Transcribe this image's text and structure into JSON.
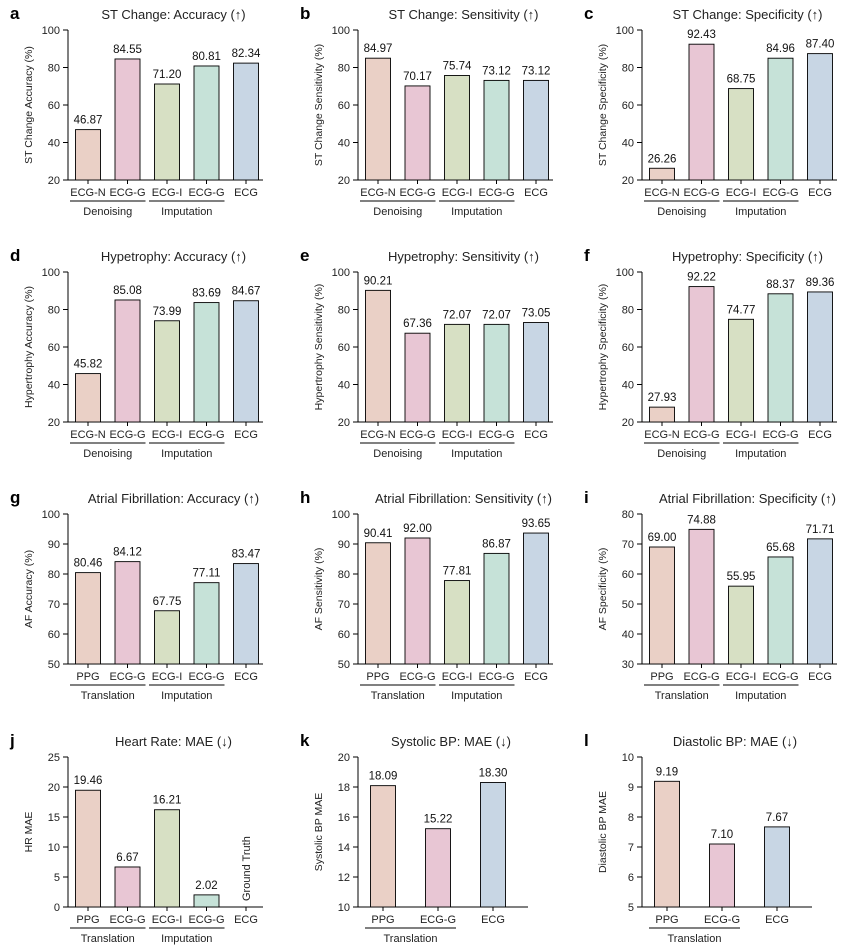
{
  "colors": {
    "PPG": "#ead0c6",
    "ECG-N": "#ead0c6",
    "ECG-G": "#e8c6d4",
    "ECG-I": "#d7e0c4",
    "ECG-G2": "#c6e2d8",
    "ECG": "#c8d6e4"
  },
  "chart_data": [
    {
      "letter": "a",
      "type": "bar",
      "title": "ST Change: Accuracy (↑)",
      "ylabel": "ST Change Accuracy (%)",
      "ylim": [
        20,
        100
      ],
      "yticks": [
        20,
        40,
        60,
        80,
        100
      ],
      "categories": [
        "ECG-N",
        "ECG-G",
        "ECG-I",
        "ECG-G",
        "ECG"
      ],
      "color_keys": [
        "ECG-N",
        "ECG-G",
        "ECG-I",
        "ECG-G2",
        "ECG"
      ],
      "values": [
        46.87,
        84.55,
        71.2,
        80.81,
        82.34
      ],
      "value_labels": [
        "46.87",
        "84.55",
        "71.20",
        "80.81",
        "82.34"
      ],
      "groups": [
        {
          "label": "Denoising",
          "from": 0,
          "to": 1
        },
        {
          "label": "Imputation",
          "from": 2,
          "to": 3
        }
      ]
    },
    {
      "letter": "b",
      "type": "bar",
      "title": "ST Change: Sensitivity (↑)",
      "ylabel": "ST Change Sensitivity (%)",
      "ylim": [
        20,
        100
      ],
      "yticks": [
        20,
        40,
        60,
        80,
        100
      ],
      "categories": [
        "ECG-N",
        "ECG-G",
        "ECG-I",
        "ECG-G",
        "ECG"
      ],
      "color_keys": [
        "ECG-N",
        "ECG-G",
        "ECG-I",
        "ECG-G2",
        "ECG"
      ],
      "values": [
        84.97,
        70.17,
        75.74,
        73.12,
        73.12
      ],
      "value_labels": [
        "84.97",
        "70.17",
        "75.74",
        "73.12",
        "73.12"
      ],
      "groups": [
        {
          "label": "Denoising",
          "from": 0,
          "to": 1
        },
        {
          "label": "Imputation",
          "from": 2,
          "to": 3
        }
      ]
    },
    {
      "letter": "c",
      "type": "bar",
      "title": "ST Change: Specificity (↑)",
      "ylabel": "ST Change Specificity (%)",
      "ylim": [
        20,
        100
      ],
      "yticks": [
        20,
        40,
        60,
        80,
        100
      ],
      "categories": [
        "ECG-N",
        "ECG-G",
        "ECG-I",
        "ECG-G",
        "ECG"
      ],
      "color_keys": [
        "ECG-N",
        "ECG-G",
        "ECG-I",
        "ECG-G2",
        "ECG"
      ],
      "values": [
        26.26,
        92.43,
        68.75,
        84.96,
        87.4
      ],
      "value_labels": [
        "26.26",
        "92.43",
        "68.75",
        "84.96",
        "87.40"
      ],
      "groups": [
        {
          "label": "Denoising",
          "from": 0,
          "to": 1
        },
        {
          "label": "Imputation",
          "from": 2,
          "to": 3
        }
      ]
    },
    {
      "letter": "d",
      "type": "bar",
      "title": "Hypetrophy: Accuracy (↑)",
      "ylabel": "Hypertrophy Accuracy (%)",
      "ylim": [
        20,
        100
      ],
      "yticks": [
        20,
        40,
        60,
        80,
        100
      ],
      "categories": [
        "ECG-N",
        "ECG-G",
        "ECG-I",
        "ECG-G",
        "ECG"
      ],
      "color_keys": [
        "ECG-N",
        "ECG-G",
        "ECG-I",
        "ECG-G2",
        "ECG"
      ],
      "values": [
        45.82,
        85.08,
        73.99,
        83.69,
        84.67
      ],
      "value_labels": [
        "45.82",
        "85.08",
        "73.99",
        "83.69",
        "84.67"
      ],
      "groups": [
        {
          "label": "Denoising",
          "from": 0,
          "to": 1
        },
        {
          "label": "Imputation",
          "from": 2,
          "to": 3
        }
      ]
    },
    {
      "letter": "e",
      "type": "bar",
      "title": "Hypetrophy: Sensitivity (↑)",
      "ylabel": "Hypertrophy Sensitivity (%)",
      "ylim": [
        20,
        100
      ],
      "yticks": [
        20,
        40,
        60,
        80,
        100
      ],
      "categories": [
        "ECG-N",
        "ECG-G",
        "ECG-I",
        "ECG-G",
        "ECG"
      ],
      "color_keys": [
        "ECG-N",
        "ECG-G",
        "ECG-I",
        "ECG-G2",
        "ECG"
      ],
      "values": [
        90.21,
        67.36,
        72.07,
        72.07,
        73.05
      ],
      "value_labels": [
        "90.21",
        "67.36",
        "72.07",
        "72.07",
        "73.05"
      ],
      "groups": [
        {
          "label": "Denoising",
          "from": 0,
          "to": 1
        },
        {
          "label": "Imputation",
          "from": 2,
          "to": 3
        }
      ]
    },
    {
      "letter": "f",
      "type": "bar",
      "title": "Hypetrophy: Specificity (↑)",
      "ylabel": "Hypertrophy Specificity (%)",
      "ylim": [
        20,
        100
      ],
      "yticks": [
        20,
        40,
        60,
        80,
        100
      ],
      "categories": [
        "ECG-N",
        "ECG-G",
        "ECG-I",
        "ECG-G",
        "ECG"
      ],
      "color_keys": [
        "ECG-N",
        "ECG-G",
        "ECG-I",
        "ECG-G2",
        "ECG"
      ],
      "values": [
        27.93,
        92.22,
        74.77,
        88.37,
        89.36
      ],
      "value_labels": [
        "27.93",
        "92.22",
        "74.77",
        "88.37",
        "89.36"
      ],
      "groups": [
        {
          "label": "Denoising",
          "from": 0,
          "to": 1
        },
        {
          "label": "Imputation",
          "from": 2,
          "to": 3
        }
      ]
    },
    {
      "letter": "g",
      "type": "bar",
      "title": "Atrial Fibrillation: Accuracy (↑)",
      "ylabel": "AF Accuracy (%)",
      "ylim": [
        50,
        100
      ],
      "yticks": [
        50,
        60,
        70,
        80,
        90,
        100
      ],
      "categories": [
        "PPG",
        "ECG-G",
        "ECG-I",
        "ECG-G",
        "ECG"
      ],
      "color_keys": [
        "PPG",
        "ECG-G",
        "ECG-I",
        "ECG-G2",
        "ECG"
      ],
      "values": [
        80.46,
        84.12,
        67.75,
        77.11,
        83.47
      ],
      "value_labels": [
        "80.46",
        "84.12",
        "67.75",
        "77.11",
        "83.47"
      ],
      "groups": [
        {
          "label": "Translation",
          "from": 0,
          "to": 1
        },
        {
          "label": "Imputation",
          "from": 2,
          "to": 3
        }
      ]
    },
    {
      "letter": "h",
      "type": "bar",
      "title": "Atrial Fibrillation: Sensitivity (↑)",
      "ylabel": "AF Sensitivity (%)",
      "ylim": [
        50,
        100
      ],
      "yticks": [
        50,
        60,
        70,
        80,
        90,
        100
      ],
      "categories": [
        "PPG",
        "ECG-G",
        "ECG-I",
        "ECG-G",
        "ECG"
      ],
      "color_keys": [
        "PPG",
        "ECG-G",
        "ECG-I",
        "ECG-G2",
        "ECG"
      ],
      "values": [
        90.41,
        92.0,
        77.81,
        86.87,
        93.65
      ],
      "value_labels": [
        "90.41",
        "92.00",
        "77.81",
        "86.87",
        "93.65"
      ],
      "groups": [
        {
          "label": "Translation",
          "from": 0,
          "to": 1
        },
        {
          "label": "Imputation",
          "from": 2,
          "to": 3
        }
      ]
    },
    {
      "letter": "i",
      "type": "bar",
      "title": "Atrial Fibrillation: Specificity (↑)",
      "ylabel": "AF Specificity (%)",
      "ylim": [
        30,
        80
      ],
      "yticks": [
        30,
        40,
        50,
        60,
        70,
        80
      ],
      "categories": [
        "PPG",
        "ECG-G",
        "ECG-I",
        "ECG-G",
        "ECG"
      ],
      "color_keys": [
        "PPG",
        "ECG-G",
        "ECG-I",
        "ECG-G2",
        "ECG"
      ],
      "values": [
        69.0,
        74.88,
        55.95,
        65.68,
        71.71
      ],
      "value_labels": [
        "69.00",
        "74.88",
        "55.95",
        "65.68",
        "71.71"
      ],
      "groups": [
        {
          "label": "Translation",
          "from": 0,
          "to": 1
        },
        {
          "label": "Imputation",
          "from": 2,
          "to": 3
        }
      ]
    },
    {
      "letter": "j",
      "type": "bar",
      "title": "Heart Rate: MAE (↓)",
      "ylabel": "HR MAE",
      "ylim": [
        0,
        25
      ],
      "yticks": [
        0,
        5,
        10,
        15,
        20,
        25
      ],
      "categories": [
        "PPG",
        "ECG-G",
        "ECG-I",
        "ECG-G",
        "ECG"
      ],
      "color_keys": [
        "PPG",
        "ECG-G",
        "ECG-I",
        "ECG-G2",
        "ECG"
      ],
      "values": [
        19.46,
        6.67,
        16.21,
        2.02,
        null
      ],
      "value_labels": [
        "19.46",
        "6.67",
        "16.21",
        "2.02",
        null
      ],
      "annotation": {
        "index": 4,
        "text": "Ground Truth"
      },
      "groups": [
        {
          "label": "Translation",
          "from": 0,
          "to": 1
        },
        {
          "label": "Imputation",
          "from": 2,
          "to": 3
        }
      ]
    },
    {
      "letter": "k",
      "type": "bar",
      "title": "Systolic BP: MAE (↓)",
      "ylabel": "Systolic BP MAE",
      "ylim": [
        10,
        20
      ],
      "yticks": [
        10,
        12,
        14,
        16,
        18,
        20
      ],
      "categories": [
        "PPG",
        "ECG-G",
        "ECG"
      ],
      "color_keys": [
        "PPG",
        "ECG-G",
        "ECG"
      ],
      "values": [
        18.09,
        15.22,
        18.3
      ],
      "value_labels": [
        "18.09",
        "15.22",
        "18.30"
      ],
      "groups": [
        {
          "label": "Translation",
          "from": 0,
          "to": 1
        }
      ]
    },
    {
      "letter": "l",
      "type": "bar",
      "title": "Diastolic BP: MAE (↓)",
      "ylabel": "Diastolic BP MAE",
      "ylim": [
        5,
        10
      ],
      "yticks": [
        5,
        6,
        7,
        8,
        9,
        10
      ],
      "categories": [
        "PPG",
        "ECG-G",
        "ECG"
      ],
      "color_keys": [
        "PPG",
        "ECG-G",
        "ECG"
      ],
      "values": [
        9.19,
        7.1,
        7.67
      ],
      "value_labels": [
        "9.19",
        "7.10",
        "7.67"
      ],
      "groups": [
        {
          "label": "Translation",
          "from": 0,
          "to": 1
        }
      ]
    }
  ]
}
